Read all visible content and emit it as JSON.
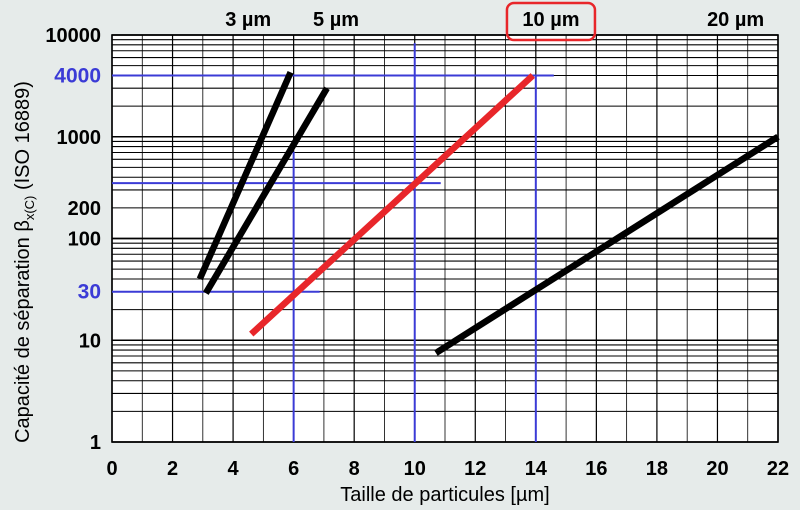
{
  "chart_data": {
    "type": "line",
    "xlabel": "Taille de particules [µm]",
    "ylabel": "Capacité de séparation β",
    "ylabel_sub": "x(C)",
    "ylabel_suffix": " (ISO 16889)",
    "xlim": [
      0,
      22
    ],
    "ylim": [
      1,
      10000
    ],
    "y_scale": "log",
    "grid": true,
    "x_ticks": [
      "0",
      "2",
      "4",
      "6",
      "8",
      "10",
      "12",
      "14",
      "16",
      "18",
      "20",
      "22"
    ],
    "y_ticks": [
      {
        "value": 1,
        "label": "1"
      },
      {
        "value": 10,
        "label": "10"
      },
      {
        "value": 30,
        "label": "30",
        "highlight": true
      },
      {
        "value": 100,
        "label": "100"
      },
      {
        "value": 200,
        "label": "200"
      },
      {
        "value": 1000,
        "label": "1000"
      },
      {
        "value": 4000,
        "label": "4000",
        "highlight": true
      },
      {
        "value": 10000,
        "label": "10000"
      }
    ],
    "series": [
      {
        "name": "3 µm",
        "color": "#000000",
        "points": [
          [
            2.9,
            40
          ],
          [
            5.9,
            4300
          ]
        ],
        "label_x": 4.5
      },
      {
        "name": "5 µm",
        "color": "#000000",
        "points": [
          [
            3.1,
            29
          ],
          [
            7.1,
            3000
          ]
        ],
        "label_x": 7.4
      },
      {
        "name": "10 µm",
        "color": "#e8262a",
        "points": [
          [
            4.6,
            11.5
          ],
          [
            13.9,
            4000
          ]
        ],
        "label_x": 14.5,
        "highlighted": true
      },
      {
        "name": "20 µm",
        "color": "#000000",
        "points": [
          [
            10.7,
            7.5
          ],
          [
            22,
            1000
          ]
        ],
        "label_x": 20.6
      }
    ],
    "reference_lines": [
      {
        "x": 6,
        "y": 30
      },
      {
        "x": 10,
        "y": 350
      },
      {
        "x": 14,
        "y": 4000
      }
    ],
    "colors": {
      "background": "#e6ebea",
      "plot_background": "#ffffff",
      "grid": "#000000",
      "highlight_line": "#e8262a",
      "reference": "#3b3bd6",
      "label_box": "#e8262a"
    }
  }
}
